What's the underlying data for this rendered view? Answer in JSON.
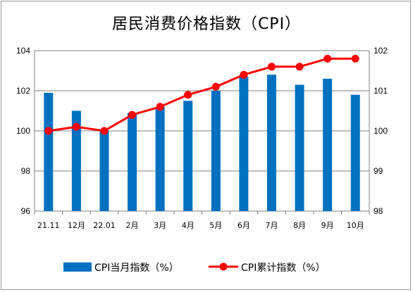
{
  "chart_data": {
    "type": "bar+line",
    "title": "居民消费价格指数（CPI）",
    "categories": [
      "21.11",
      "12月",
      "22.01",
      "2月",
      "3月",
      "4月",
      "5月",
      "6月",
      "7月",
      "8月",
      "9月",
      "10月"
    ],
    "series": [
      {
        "name": "CPI当月指数（%）",
        "type": "bar",
        "axis": "left",
        "color": "#0070c0",
        "values": [
          101.9,
          101.0,
          100.0,
          100.9,
          101.2,
          101.5,
          102.0,
          102.7,
          102.8,
          102.3,
          102.6,
          101.8
        ]
      },
      {
        "name": "CPI累计指数（%）",
        "type": "line",
        "axis": "right",
        "color": "#ff0000",
        "values": [
          100.0,
          100.1,
          100.0,
          100.4,
          100.6,
          100.9,
          101.1,
          101.4,
          101.6,
          101.6,
          101.8,
          101.8
        ]
      }
    ],
    "y_left": {
      "min": 96,
      "max": 104,
      "ticks": [
        "96",
        "98",
        "100",
        "102",
        "104"
      ]
    },
    "y_right": {
      "min": 98,
      "max": 102,
      "ticks": [
        "98",
        "99",
        "100",
        "101",
        "102"
      ]
    },
    "grid": true,
    "legend": "bottom"
  }
}
